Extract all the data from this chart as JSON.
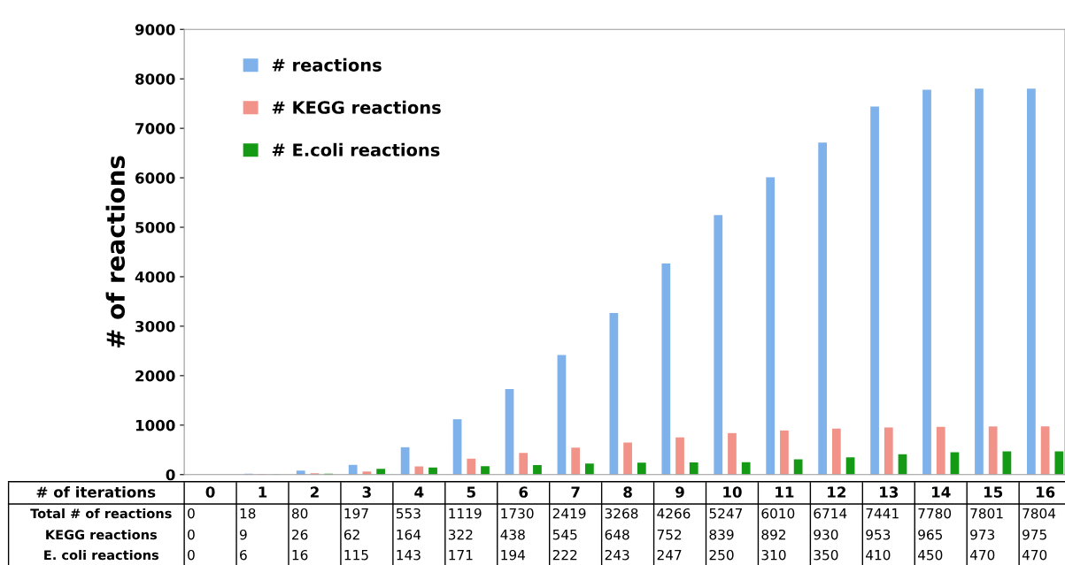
{
  "chart_data": {
    "type": "bar",
    "ylabel": "# of reactions",
    "xlabel": "# of iterations",
    "categories": [
      "0",
      "1",
      "2",
      "3",
      "4",
      "5",
      "6",
      "7",
      "8",
      "9",
      "10",
      "11",
      "12",
      "13",
      "14",
      "15",
      "16"
    ],
    "series": [
      {
        "name": "# reactions",
        "color": "#7fb2ea",
        "values": [
          0,
          18,
          80,
          197,
          553,
          1119,
          1730,
          2419,
          3268,
          4266,
          5247,
          6010,
          6714,
          7441,
          7780,
          7801,
          7804
        ]
      },
      {
        "name": "# KEGG reactions",
        "color": "#f2938a",
        "values": [
          0,
          9,
          26,
          62,
          164,
          322,
          438,
          545,
          648,
          752,
          839,
          892,
          930,
          953,
          965,
          973,
          975
        ]
      },
      {
        "name": "# E.coli reactions",
        "color": "#159a15",
        "values": [
          0,
          6,
          16,
          115,
          143,
          171,
          194,
          222,
          243,
          247,
          250,
          310,
          350,
          410,
          450,
          470,
          470
        ]
      }
    ],
    "annotations": [
      "Total # of reactions",
      "KEGG reactions",
      "E. coli reactions"
    ],
    "data_labels": true,
    "legend": "top left",
    "grid": false,
    "ylim": [
      0,
      9000
    ],
    "yticks": [
      0,
      1000,
      2000,
      3000,
      4000,
      5000,
      6000,
      7000,
      8000,
      9000
    ]
  }
}
